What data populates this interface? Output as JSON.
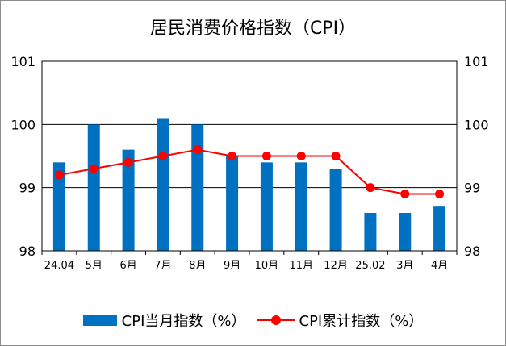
{
  "chart_data": {
    "type": "bar",
    "title": "居民消费价格指数（CPI）",
    "categories": [
      "24.04",
      "5月",
      "6月",
      "7月",
      "8月",
      "9月",
      "10月",
      "11月",
      "12月",
      "25.02",
      "3月",
      "4月"
    ],
    "series": [
      {
        "name": "CPI当月指数（%）",
        "type": "bar",
        "color": "#0070c0",
        "values": [
          99.4,
          100.0,
          99.6,
          100.1,
          100.0,
          99.5,
          99.4,
          99.4,
          99.3,
          98.6,
          98.6,
          98.7
        ]
      },
      {
        "name": "CPI累计指数（%）",
        "type": "line",
        "color": "#ff0000",
        "values": [
          99.2,
          99.3,
          99.4,
          99.5,
          99.6,
          99.5,
          99.5,
          99.5,
          99.5,
          99.0,
          98.9,
          98.9
        ]
      }
    ],
    "ylim": [
      98,
      101
    ],
    "yticks": [
      "98",
      "99",
      "100",
      "101"
    ],
    "xlabel": "",
    "ylabel": "",
    "grid": true,
    "secondary_axis": true,
    "legend_position": "bottom"
  }
}
